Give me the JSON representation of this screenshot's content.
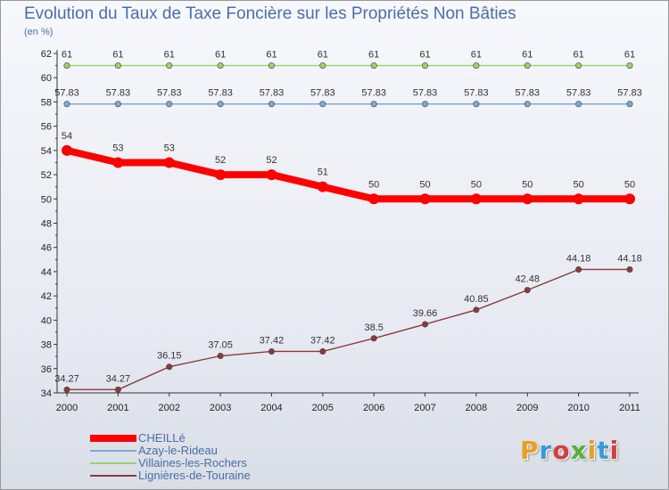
{
  "header": {
    "title": "Evolution du Taux de Taxe Foncière sur les Propriétés Non Bâties",
    "subtitle": "(en %)"
  },
  "logo": {
    "text": "Proxiti",
    "colors": [
      "#e8a020",
      "#3a9ad9",
      "#d04040",
      "#5ab03a",
      "#e8a020",
      "#3a9ad9",
      "#d04040"
    ]
  },
  "chart_data": {
    "type": "line",
    "title": "Evolution du Taux de Taxe Foncière sur les Propriétés Non Bâties",
    "ylabel": "(en %)",
    "xlabel": "",
    "x": [
      "2000",
      "2001",
      "2002",
      "2003",
      "2004",
      "2005",
      "2006",
      "2007",
      "2008",
      "2009",
      "2010",
      "2011"
    ],
    "ylim": [
      34,
      62
    ],
    "yticks": [
      34,
      36,
      38,
      40,
      42,
      44,
      46,
      48,
      50,
      52,
      54,
      56,
      58,
      60,
      62
    ],
    "grid": false,
    "legend": "bottom-left",
    "series": [
      {
        "name": "CHEILLé",
        "color": "#ff0000",
        "values": [
          54,
          53,
          53,
          52,
          52,
          51,
          50,
          50,
          50,
          50,
          50,
          50
        ],
        "labels": [
          "54",
          "53",
          "53",
          "52",
          "52",
          "51",
          "50",
          "50",
          "50",
          "50",
          "50",
          "50"
        ]
      },
      {
        "name": "Azay-le-Rideau",
        "color": "#7aaad6",
        "values": [
          57.83,
          57.83,
          57.83,
          57.83,
          57.83,
          57.83,
          57.83,
          57.83,
          57.83,
          57.83,
          57.83,
          57.83
        ],
        "labels": [
          "57.83",
          "57.83",
          "57.83",
          "57.83",
          "57.83",
          "57.83",
          "57.83",
          "57.83",
          "57.83",
          "57.83",
          "57.83",
          "57.83"
        ]
      },
      {
        "name": "Villaines-les-Rochers",
        "color": "#99d46a",
        "values": [
          61,
          61,
          61,
          61,
          61,
          61,
          61,
          61,
          61,
          61,
          61,
          61
        ],
        "labels": [
          "61",
          "61",
          "61",
          "61",
          "61",
          "61",
          "61",
          "61",
          "61",
          "61",
          "61",
          "61"
        ]
      },
      {
        "name": "Lignières-de-Touraine",
        "color": "#8b3a3a",
        "values": [
          34.27,
          34.27,
          36.15,
          37.05,
          37.42,
          37.42,
          38.5,
          39.66,
          40.85,
          42.48,
          44.18,
          44.18
        ],
        "labels": [
          "34.27",
          "34.27",
          "36.15",
          "37.05",
          "37.42",
          "37.42",
          "38.5",
          "39.66",
          "40.85",
          "42.48",
          "44.18",
          "44.18"
        ]
      }
    ]
  }
}
